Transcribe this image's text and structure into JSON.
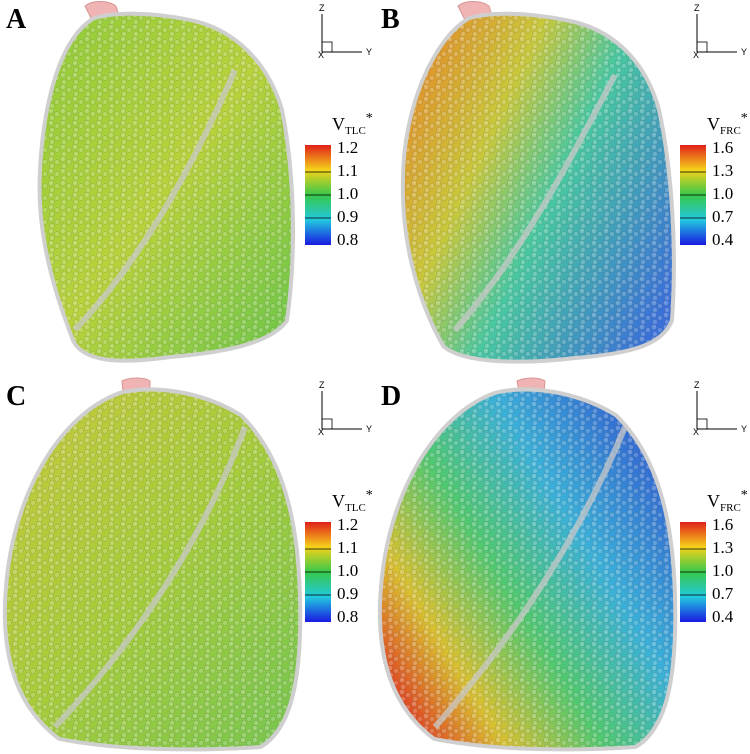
{
  "panels": [
    {
      "label": "A",
      "colorbar": {
        "title": {
          "base": "V",
          "sub": "TLC",
          "sup": "*"
        },
        "ticks": [
          "1.2",
          "1.1",
          "1.0",
          "0.9",
          "0.8"
        ]
      },
      "axes": {
        "z": "Z",
        "y": "Y",
        "x": "X"
      }
    },
    {
      "label": "B",
      "colorbar": {
        "title": {
          "base": "V",
          "sub": "FRC",
          "sup": "*"
        },
        "ticks": [
          "1.6",
          "1.3",
          "1.0",
          "0.7",
          "0.4"
        ]
      },
      "axes": {
        "z": "Z",
        "y": "Y",
        "x": "X"
      }
    },
    {
      "label": "C",
      "colorbar": {
        "title": {
          "base": "V",
          "sub": "TLC",
          "sup": "*"
        },
        "ticks": [
          "1.2",
          "1.1",
          "1.0",
          "0.9",
          "0.8"
        ]
      },
      "axes": {
        "z": "Z",
        "y": "Y",
        "x": "X"
      }
    },
    {
      "label": "D",
      "colorbar": {
        "title": {
          "base": "V",
          "sub": "FRC",
          "sup": "*"
        },
        "ticks": [
          "1.6",
          "1.3",
          "1.0",
          "0.7",
          "0.4"
        ]
      },
      "axes": {
        "z": "Z",
        "y": "Y",
        "x": "X"
      }
    }
  ]
}
